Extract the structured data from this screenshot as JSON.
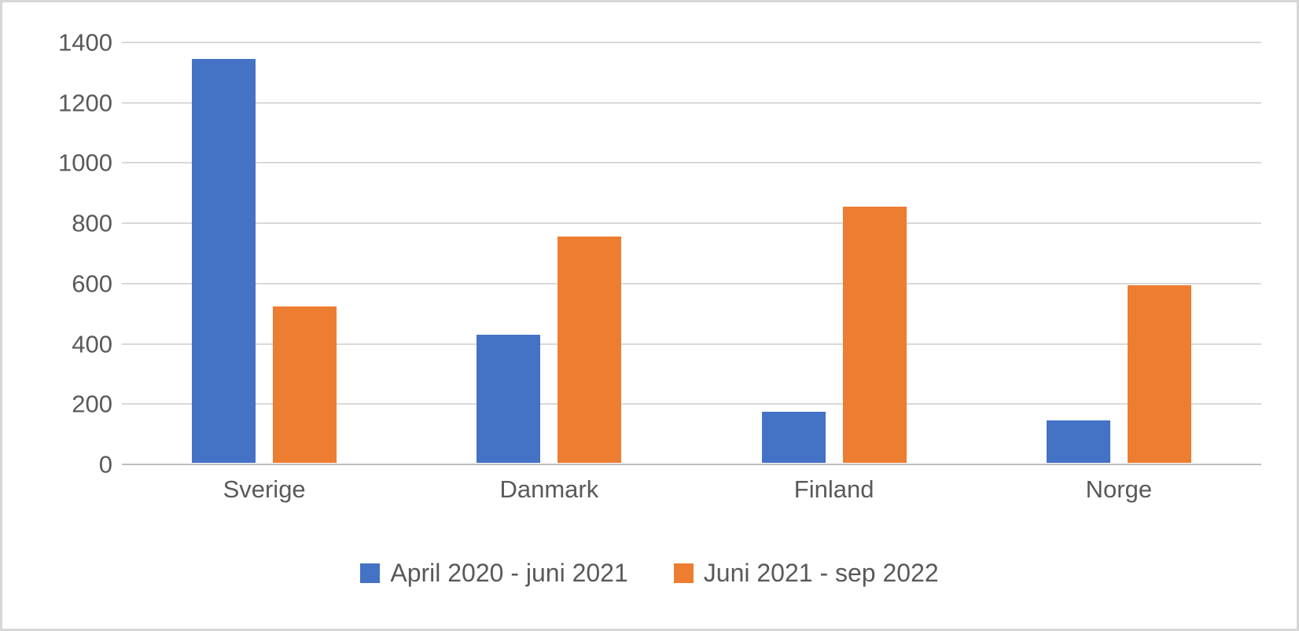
{
  "chart_data": {
    "type": "bar",
    "categories": [
      "Sverige",
      "Danmark",
      "Finland",
      "Norge"
    ],
    "series": [
      {
        "name": "April 2020 - juni 2021",
        "color": "#4472C4",
        "values": [
          1340,
          425,
          170,
          140
        ]
      },
      {
        "name": "Juni 2021 - sep 2022",
        "color": "#ED7D31",
        "values": [
          520,
          750,
          850,
          590
        ]
      }
    ],
    "title": "",
    "xlabel": "",
    "ylabel": "",
    "ylim": [
      0,
      1400
    ],
    "ytick_step": 200,
    "ytick_labels": [
      "0",
      "200",
      "400",
      "600",
      "800",
      "1000",
      "1200",
      "1400"
    ],
    "grid": true,
    "legend_position": "bottom"
  },
  "styles": {
    "text_color": "#595959",
    "gridline_color": "#d9d9d9",
    "axis_line_color": "#bfbfbf",
    "frame_border_color": "#d7d7d7",
    "background_color": "#ffffff",
    "series_colors": [
      "#4472C4",
      "#ED7D31"
    ]
  }
}
